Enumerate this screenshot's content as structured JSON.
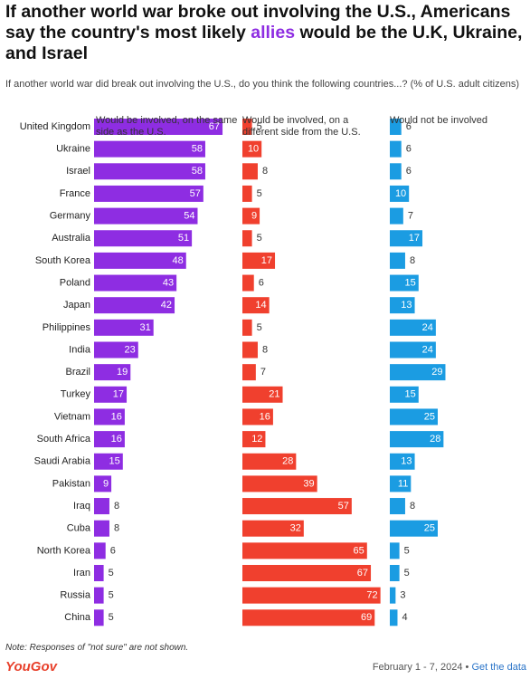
{
  "chart_data": {
    "type": "bar",
    "orientation": "horizontal",
    "layout": "panels",
    "title_parts": [
      "If another world war broke out involving the U.S., Americans say the country's most likely ",
      "allies",
      " would be the U.K, Ukraine, and Israel"
    ],
    "title_highlight_color": "#8e2de2",
    "subtitle": "If another world war did break out involving the U.S., do you think the following countries...? (% of U.S. adult citizens)",
    "categories": [
      "United Kingdom",
      "Ukraine",
      "Israel",
      "France",
      "Germany",
      "Australia",
      "South Korea",
      "Poland",
      "Japan",
      "Philippines",
      "India",
      "Brazil",
      "Turkey",
      "Vietnam",
      "South Africa",
      "Saudi Arabia",
      "Pakistan",
      "Iraq",
      "Cuba",
      "North Korea",
      "Iran",
      "Russia",
      "China"
    ],
    "series": [
      {
        "name": "Would be involved, on the same side as the U.S.",
        "color": "#8e2de2",
        "values": [
          67,
          58,
          58,
          57,
          54,
          51,
          48,
          43,
          42,
          31,
          23,
          19,
          17,
          16,
          16,
          15,
          9,
          8,
          8,
          6,
          5,
          5,
          5
        ]
      },
      {
        "name": "Would be involved, on a different side from the U.S.",
        "color": "#f0402e",
        "values": [
          5,
          10,
          8,
          5,
          9,
          5,
          17,
          6,
          14,
          5,
          8,
          7,
          21,
          16,
          12,
          28,
          39,
          57,
          32,
          65,
          67,
          72,
          69
        ]
      },
      {
        "name": "Would not be involved",
        "color": "#1b9ce2",
        "values": [
          6,
          6,
          6,
          10,
          7,
          17,
          8,
          15,
          13,
          24,
          24,
          29,
          15,
          25,
          28,
          13,
          11,
          8,
          25,
          5,
          5,
          3,
          4
        ]
      }
    ],
    "note": "Note: Responses of \"not sure\" are not shown.",
    "source": "YouGov",
    "date": "February 1 - 7, 2024",
    "link": "Get the data"
  }
}
